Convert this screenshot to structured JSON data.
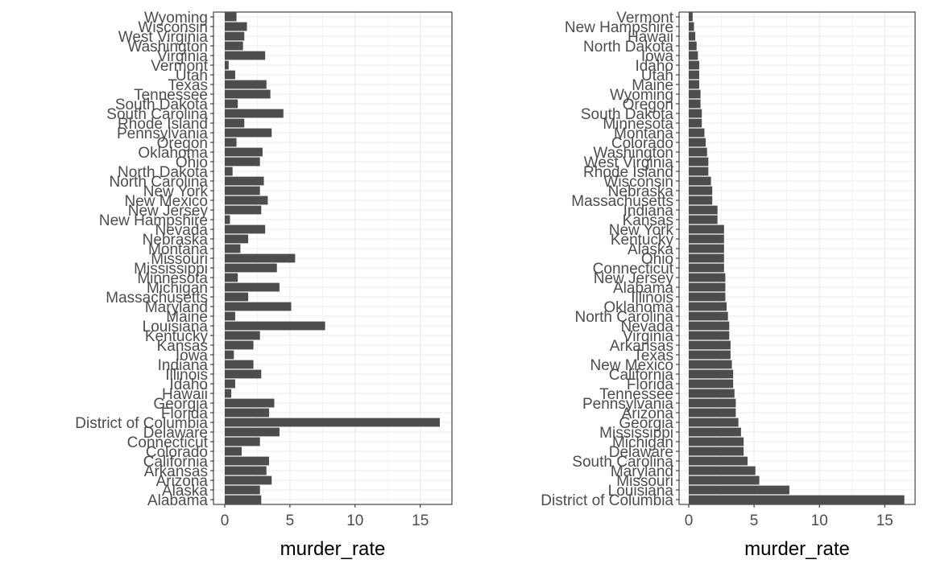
{
  "chart_data": [
    {
      "type": "bar",
      "orientation": "horizontal",
      "order": "alphabetical",
      "xlabel": "murder_rate",
      "ylabel": "",
      "xlim": [
        0,
        16.5
      ],
      "xticks": [
        0,
        5,
        10,
        15
      ],
      "grid": true,
      "bar_color": "#4d4d4d",
      "categories": [
        "Alabama",
        "Alaska",
        "Arizona",
        "Arkansas",
        "California",
        "Colorado",
        "Connecticut",
        "Delaware",
        "District of Columbia",
        "Florida",
        "Georgia",
        "Hawaii",
        "Idaho",
        "Illinois",
        "Indiana",
        "Iowa",
        "Kansas",
        "Kentucky",
        "Louisiana",
        "Maine",
        "Maryland",
        "Massachusetts",
        "Michigan",
        "Minnesota",
        "Mississippi",
        "Missouri",
        "Montana",
        "Nebraska",
        "Nevada",
        "New Hampshire",
        "New Jersey",
        "New Mexico",
        "New York",
        "North Carolina",
        "North Dakota",
        "Ohio",
        "Oklahoma",
        "Oregon",
        "Pennsylvania",
        "Rhode Island",
        "South Carolina",
        "South Dakota",
        "Tennessee",
        "Texas",
        "Utah",
        "Vermont",
        "Virginia",
        "Washington",
        "West Virginia",
        "Wisconsin",
        "Wyoming"
      ],
      "values": [
        2.8,
        2.7,
        3.6,
        3.2,
        3.4,
        1.3,
        2.7,
        4.2,
        16.5,
        3.4,
        3.8,
        0.5,
        0.8,
        2.8,
        2.2,
        0.7,
        2.2,
        2.7,
        7.7,
        0.8,
        5.1,
        1.8,
        4.2,
        1.0,
        4.0,
        5.4,
        1.2,
        1.8,
        3.1,
        0.4,
        2.8,
        3.3,
        2.7,
        3.0,
        0.6,
        2.7,
        2.9,
        0.9,
        3.6,
        1.5,
        4.5,
        1.0,
        3.5,
        3.2,
        0.8,
        0.3,
        3.1,
        1.4,
        1.5,
        1.7,
        0.9
      ]
    },
    {
      "type": "bar",
      "orientation": "horizontal",
      "order": "descending by value",
      "xlabel": "murder_rate",
      "ylabel": "",
      "xlim": [
        0,
        16.5
      ],
      "xticks": [
        0,
        5,
        10,
        15
      ],
      "grid": true,
      "bar_color": "#4d4d4d",
      "categories": [
        "District of Columbia",
        "Louisiana",
        "Missouri",
        "Maryland",
        "South Carolina",
        "Delaware",
        "Michigan",
        "Mississippi",
        "Georgia",
        "Arizona",
        "Pennsylvania",
        "Tennessee",
        "Florida",
        "California",
        "New Mexico",
        "Texas",
        "Arkansas",
        "Virginia",
        "Nevada",
        "North Carolina",
        "Oklahoma",
        "Illinois",
        "Alabama",
        "New Jersey",
        "Connecticut",
        "Ohio",
        "Alaska",
        "Kentucky",
        "New York",
        "Kansas",
        "Indiana",
        "Massachusetts",
        "Nebraska",
        "Wisconsin",
        "Rhode Island",
        "West Virginia",
        "Washington",
        "Colorado",
        "Montana",
        "Minnesota",
        "South Dakota",
        "Oregon",
        "Wyoming",
        "Maine",
        "Utah",
        "Idaho",
        "Iowa",
        "North Dakota",
        "Hawaii",
        "New Hampshire",
        "Vermont"
      ],
      "values": [
        16.5,
        7.7,
        5.4,
        5.1,
        4.5,
        4.2,
        4.2,
        4.0,
        3.8,
        3.6,
        3.6,
        3.5,
        3.4,
        3.4,
        3.3,
        3.2,
        3.2,
        3.1,
        3.1,
        3.0,
        2.9,
        2.8,
        2.8,
        2.8,
        2.7,
        2.7,
        2.7,
        2.7,
        2.7,
        2.2,
        2.2,
        1.8,
        1.8,
        1.7,
        1.5,
        1.5,
        1.4,
        1.3,
        1.2,
        1.0,
        1.0,
        0.9,
        0.9,
        0.8,
        0.8,
        0.8,
        0.7,
        0.6,
        0.5,
        0.4,
        0.3
      ]
    }
  ]
}
